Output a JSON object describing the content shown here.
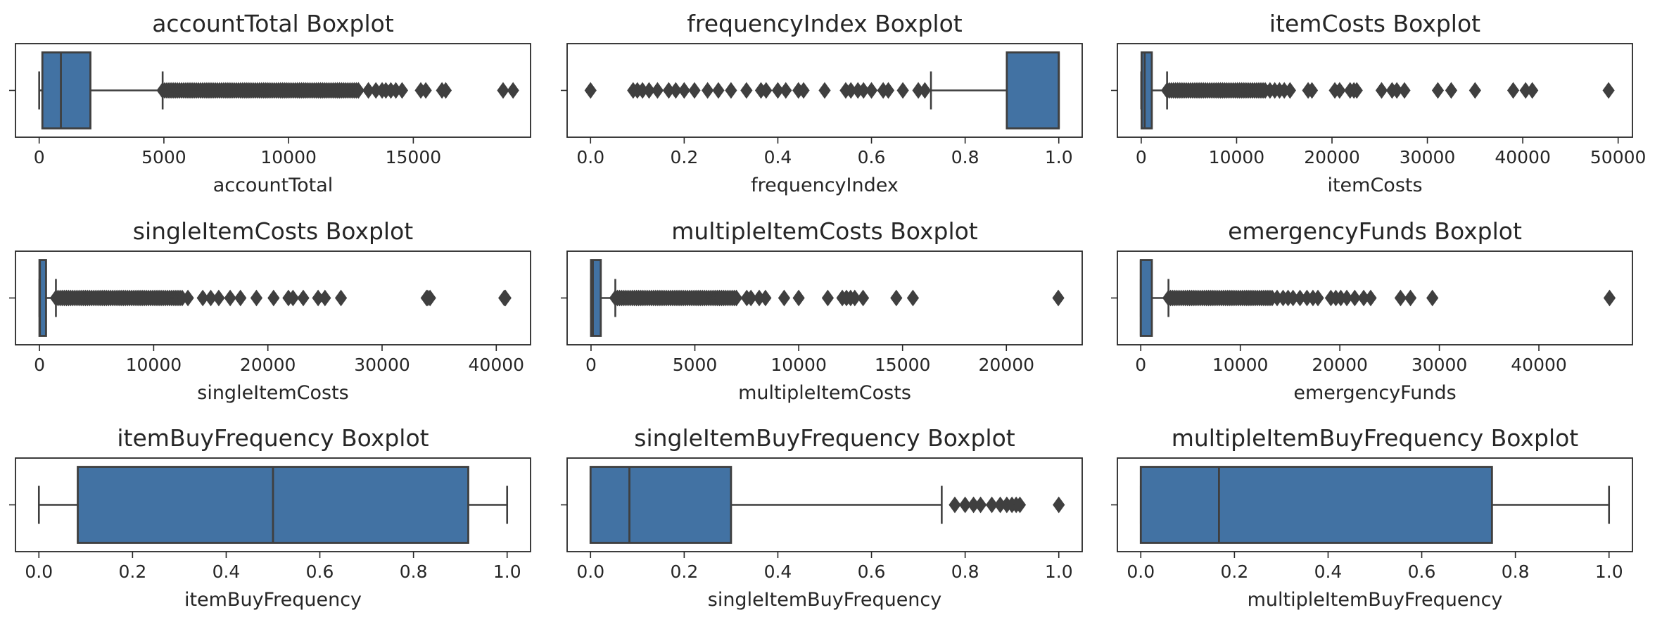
{
  "colors": {
    "box_fill": "#4272a3",
    "stroke": "#3f3f3f",
    "frame": "#262626"
  },
  "chart_data": [
    {
      "type": "boxplot",
      "title": "accountTotal Boxplot",
      "xlabel": "accountTotal",
      "xlim": [
        -950,
        19700
      ],
      "xticks": [
        0,
        5000,
        10000,
        15000
      ],
      "xtick_labels": [
        "0",
        "5000",
        "10000",
        "15000"
      ],
      "whisker_low": 0,
      "q1": 128,
      "median": 871,
      "q3": 2054,
      "whisker_high": 4950,
      "outlier_band": [
        4950,
        12800
      ],
      "outliers": [
        13200,
        13500,
        13750,
        13900,
        14100,
        14300,
        14550,
        15300,
        15500,
        16150,
        16300,
        18600,
        19000
      ]
    },
    {
      "type": "boxplot",
      "title": "frequencyIndex Boxplot",
      "xlabel": "frequencyIndex",
      "xlim": [
        -0.05,
        1.05
      ],
      "xticks": [
        0.0,
        0.2,
        0.4,
        0.6,
        0.8,
        1.0
      ],
      "xtick_labels": [
        "0.0",
        "0.2",
        "0.4",
        "0.6",
        "0.8",
        "1.0"
      ],
      "whisker_low": 0.727,
      "q1": 0.889,
      "median": 1.0,
      "q3": 1.0,
      "whisker_high": 1.0,
      "outliers": [
        0.0,
        0.091,
        0.1,
        0.111,
        0.125,
        0.143,
        0.167,
        0.182,
        0.2,
        0.222,
        0.25,
        0.273,
        0.3,
        0.333,
        0.364,
        0.375,
        0.4,
        0.417,
        0.444,
        0.455,
        0.5,
        0.545,
        0.556,
        0.571,
        0.583,
        0.6,
        0.625,
        0.636,
        0.667,
        0.7,
        0.714
      ]
    },
    {
      "type": "boxplot",
      "title": "itemCosts Boxplot",
      "xlabel": "itemCosts",
      "xlim": [
        -2500,
        51500
      ],
      "xticks": [
        0,
        10000,
        20000,
        30000,
        40000,
        50000
      ],
      "xtick_labels": [
        "0",
        "10000",
        "20000",
        "30000",
        "40000",
        "50000"
      ],
      "whisker_low": 0,
      "q1": 40,
      "median": 360,
      "q3": 1110,
      "whisker_high": 2710,
      "outlier_band": [
        2710,
        13000
      ],
      "outliers": [
        13500,
        14000,
        14500,
        15000,
        15600,
        17500,
        17900,
        20300,
        20800,
        21900,
        22300,
        22600,
        25200,
        26300,
        26800,
        27600,
        31100,
        32500,
        35000,
        39000,
        40300,
        41000,
        49000
      ]
    },
    {
      "type": "boxplot",
      "title": "singleItemCosts Boxplot",
      "xlabel": "singleItemCosts",
      "xlim": [
        -2100,
        43000
      ],
      "xticks": [
        0,
        10000,
        20000,
        30000,
        40000
      ],
      "xtick_labels": [
        "0",
        "10000",
        "20000",
        "30000",
        "40000"
      ],
      "whisker_low": 0,
      "q1": 0,
      "median": 38,
      "q3": 577,
      "whisker_high": 1441,
      "outlier_band": [
        1441,
        12500
      ],
      "outliers": [
        13000,
        14300,
        15000,
        15700,
        16700,
        17600,
        19000,
        20500,
        21800,
        22200,
        23100,
        24400,
        25000,
        26400,
        33900,
        34000,
        34200,
        40700,
        40800
      ]
    },
    {
      "type": "boxplot",
      "title": "multipleItemCosts Boxplot",
      "xlabel": "multipleItemCosts",
      "xlim": [
        -1150,
        23650
      ],
      "xticks": [
        0,
        5000,
        10000,
        15000,
        20000
      ],
      "xtick_labels": [
        "0",
        "5000",
        "10000",
        "15000",
        "20000"
      ],
      "whisker_low": 0,
      "q1": 0,
      "median": 89,
      "q3": 469,
      "whisker_high": 1170,
      "outlier_band": [
        1170,
        7000
      ],
      "outliers": [
        7500,
        7700,
        8100,
        8400,
        9300,
        10000,
        11400,
        12100,
        12300,
        12500,
        12700,
        13100,
        14700,
        15500,
        22500
      ]
    },
    {
      "type": "boxplot",
      "title": "emergencyFunds Boxplot",
      "xlabel": "emergencyFunds",
      "xlim": [
        -2350,
        49400
      ],
      "xticks": [
        0,
        10000,
        20000,
        30000,
        40000
      ],
      "xtick_labels": [
        "0",
        "10000",
        "20000",
        "30000",
        "40000"
      ],
      "whisker_low": 0,
      "q1": 0,
      "median": 0,
      "q3": 1114,
      "whisker_high": 2784,
      "outlier_band": [
        2784,
        13200
      ],
      "outliers": [
        13700,
        14300,
        14800,
        15300,
        16000,
        16700,
        17300,
        17800,
        19100,
        19600,
        20100,
        20700,
        21500,
        22400,
        23100,
        26100,
        27100,
        29300,
        47100
      ]
    },
    {
      "type": "boxplot",
      "title": "itemBuyFrequency Boxplot",
      "xlabel": "itemBuyFrequency",
      "xlim": [
        -0.05,
        1.05
      ],
      "xticks": [
        0.0,
        0.2,
        0.4,
        0.6,
        0.8,
        1.0
      ],
      "xtick_labels": [
        "0.0",
        "0.2",
        "0.4",
        "0.6",
        "0.8",
        "1.0"
      ],
      "whisker_low": 0.0,
      "q1": 0.083,
      "median": 0.5,
      "q3": 0.917,
      "whisker_high": 1.0,
      "outliers": []
    },
    {
      "type": "boxplot",
      "title": "singleItemBuyFrequency Boxplot",
      "xlabel": "singleItemBuyFrequency",
      "xlim": [
        -0.05,
        1.05
      ],
      "xticks": [
        0.0,
        0.2,
        0.4,
        0.6,
        0.8,
        1.0
      ],
      "xtick_labels": [
        "0.0",
        "0.2",
        "0.4",
        "0.6",
        "0.8",
        "1.0"
      ],
      "whisker_low": 0.0,
      "q1": 0.0,
      "median": 0.083,
      "q3": 0.3,
      "whisker_high": 0.75,
      "outliers": [
        0.778,
        0.8,
        0.818,
        0.833,
        0.857,
        0.875,
        0.889,
        0.9,
        0.909,
        0.917,
        1.0
      ]
    },
    {
      "type": "boxplot",
      "title": "multipleItemBuyFrequency Boxplot",
      "xlabel": "multipleItemBuyFrequency",
      "xlim": [
        -0.05,
        1.05
      ],
      "xticks": [
        0.0,
        0.2,
        0.4,
        0.6,
        0.8,
        1.0
      ],
      "xtick_labels": [
        "0.0",
        "0.2",
        "0.4",
        "0.6",
        "0.8",
        "1.0"
      ],
      "whisker_low": 0.0,
      "q1": 0.0,
      "median": 0.167,
      "q3": 0.75,
      "whisker_high": 1.0,
      "outliers": []
    }
  ]
}
